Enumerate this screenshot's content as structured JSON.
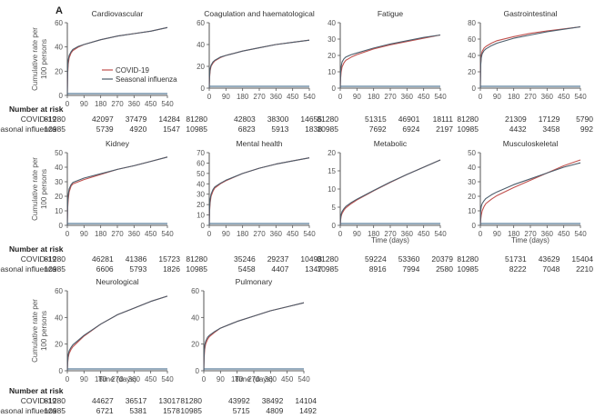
{
  "figure": {
    "panel_letter": "A",
    "ylabel_line1": "Cumulative rate per",
    "ylabel_line2": "100 persons",
    "xlabel": "Time (days)",
    "number_at_risk_label": "Number at risk",
    "risk_row_labels": [
      "COVID-19",
      "Seasonal influenza"
    ],
    "colors": {
      "covid": "#c0504d",
      "influenza": "#4b5d6b",
      "baseline": "#5b7d9a",
      "axis": "#555555",
      "text": "#333333"
    }
  },
  "chart_data": [
    {
      "type": "line",
      "title": "Cardiovascular",
      "xlabel": "",
      "ylabel": "Cumulative rate per 100 persons",
      "xticks": [
        0,
        90,
        180,
        270,
        360,
        450,
        540
      ],
      "ylim": [
        0,
        60
      ],
      "yticks": [
        0,
        20,
        40,
        60
      ],
      "x": [
        0,
        2,
        5,
        10,
        20,
        30,
        60,
        90,
        180,
        270,
        360,
        450,
        540
      ],
      "series": [
        {
          "name": "COVID-19",
          "values": [
            0,
            18,
            26,
            31,
            35,
            37,
            40,
            42,
            46,
            49,
            51,
            53,
            56
          ]
        },
        {
          "name": "Seasonal influenza",
          "values": [
            0,
            22,
            29,
            33,
            36,
            38,
            40.5,
            42,
            46,
            49,
            51,
            53,
            56
          ]
        }
      ],
      "legend": {
        "entries": [
          "COVID-19",
          "Seasonal influenza"
        ],
        "placement": "bottom-right"
      },
      "risk": {
        "covid": [
          81280,
          42097,
          37479,
          14284
        ],
        "influenza": [
          10985,
          5739,
          4920,
          1547
        ]
      },
      "show_time_label": false,
      "show_risk_header": true
    },
    {
      "type": "line",
      "title": "Coagulation and haematological",
      "xticks": [
        0,
        90,
        180,
        270,
        360,
        450,
        540
      ],
      "ylim": [
        0,
        60
      ],
      "yticks": [
        0,
        20,
        40,
        60
      ],
      "x": [
        0,
        2,
        5,
        10,
        20,
        30,
        60,
        90,
        180,
        270,
        360,
        450,
        540
      ],
      "series": [
        {
          "name": "COVID-19",
          "values": [
            0,
            10,
            16,
            20,
            23,
            25,
            28,
            30,
            34,
            37,
            40,
            42,
            44
          ]
        },
        {
          "name": "Seasonal influenza",
          "values": [
            0,
            12,
            18,
            21,
            24,
            25.5,
            28.5,
            30,
            34,
            37,
            40,
            42,
            44
          ]
        }
      ],
      "risk": {
        "covid": [
          81280,
          42803,
          38300,
          14655
        ],
        "influenza": [
          10985,
          6823,
          5913,
          1838
        ]
      },
      "show_time_label": false,
      "show_risk_header": false
    },
    {
      "type": "line",
      "title": "Fatigue",
      "xticks": [
        0,
        90,
        180,
        270,
        360,
        450,
        540
      ],
      "ylim": [
        0,
        40
      ],
      "yticks": [
        0,
        10,
        20,
        30,
        40
      ],
      "x": [
        0,
        2,
        5,
        10,
        20,
        30,
        60,
        90,
        180,
        270,
        360,
        450,
        540
      ],
      "series": [
        {
          "name": "COVID-19",
          "values": [
            0,
            6,
            10,
            13,
            15.5,
            17,
            19,
            20.5,
            24,
            26.5,
            28.5,
            30.5,
            32.5
          ]
        },
        {
          "name": "Seasonal influenza",
          "values": [
            0,
            9,
            13,
            16,
            18,
            19,
            20.5,
            21.5,
            24.5,
            27,
            29,
            31,
            32.5
          ]
        }
      ],
      "risk": {
        "covid": [
          81280,
          51315,
          46901,
          18111
        ],
        "influenza": [
          10985,
          7692,
          6924,
          2197
        ]
      },
      "show_time_label": false,
      "show_risk_header": false
    },
    {
      "type": "line",
      "title": "Gastrointestinal",
      "xticks": [
        0,
        90,
        180,
        270,
        360,
        450,
        540
      ],
      "ylim": [
        0,
        80
      ],
      "yticks": [
        0,
        20,
        40,
        60,
        80
      ],
      "x": [
        0,
        2,
        5,
        10,
        20,
        30,
        60,
        90,
        180,
        270,
        360,
        450,
        540
      ],
      "series": [
        {
          "name": "COVID-19",
          "values": [
            0,
            30,
            40,
            45,
            49,
            51,
            55,
            58,
            63,
            67,
            70,
            72.5,
            75
          ]
        },
        {
          "name": "Seasonal influenza",
          "values": [
            0,
            28,
            37,
            42,
            46,
            48,
            52,
            55,
            61,
            65,
            69,
            72,
            75
          ]
        }
      ],
      "risk": {
        "covid": [
          81280,
          21309,
          17129,
          5790
        ],
        "influenza": [
          10985,
          4432,
          3458,
          992
        ]
      },
      "show_time_label": false,
      "show_risk_header": false
    },
    {
      "type": "line",
      "title": "Kidney",
      "xticks": [
        0,
        90,
        180,
        270,
        360,
        450,
        540
      ],
      "ylim": [
        0,
        50
      ],
      "yticks": [
        0,
        10,
        20,
        30,
        40,
        50
      ],
      "x": [
        0,
        2,
        5,
        10,
        20,
        30,
        60,
        90,
        180,
        270,
        360,
        450,
        540
      ],
      "series": [
        {
          "name": "COVID-19",
          "values": [
            0,
            12,
            18,
            23,
            27,
            28.5,
            30,
            31.5,
            35,
            38.5,
            41,
            44,
            47
          ]
        },
        {
          "name": "Seasonal influenza",
          "values": [
            0,
            15,
            21,
            25,
            28,
            29.5,
            31,
            32.5,
            35.5,
            38.5,
            41,
            44,
            47
          ]
        }
      ],
      "risk": {
        "covid": [
          81280,
          46281,
          41386,
          15723
        ],
        "influenza": [
          10985,
          6606,
          5793,
          1826
        ]
      },
      "show_time_label": false,
      "show_risk_header": true
    },
    {
      "type": "line",
      "title": "Mental health",
      "xticks": [
        0,
        90,
        180,
        270,
        360,
        450,
        540
      ],
      "ylim": [
        0,
        70
      ],
      "yticks": [
        0,
        10,
        20,
        30,
        40,
        50,
        60,
        70
      ],
      "x": [
        0,
        2,
        5,
        10,
        20,
        30,
        60,
        90,
        180,
        270,
        360,
        450,
        540
      ],
      "series": [
        {
          "name": "COVID-19",
          "values": [
            0,
            14,
            22,
            28,
            33,
            36,
            40,
            43,
            50,
            55,
            59,
            62,
            65
          ]
        },
        {
          "name": "Seasonal influenza",
          "values": [
            0,
            17,
            25,
            30,
            34.5,
            37,
            40.5,
            43.5,
            50,
            55,
            59,
            62,
            65
          ]
        }
      ],
      "risk": {
        "covid": [
          81280,
          35246,
          29237,
          10493
        ],
        "influenza": [
          10985,
          5458,
          4407,
          1347
        ]
      },
      "show_time_label": false,
      "show_risk_header": false
    },
    {
      "type": "line",
      "title": "Metabolic",
      "xticks": [
        0,
        90,
        180,
        270,
        360,
        450,
        540
      ],
      "ylim": [
        0,
        20
      ],
      "yticks": [
        0,
        5,
        10,
        15,
        20
      ],
      "x": [
        0,
        2,
        5,
        10,
        20,
        30,
        60,
        90,
        180,
        270,
        360,
        450,
        540
      ],
      "series": [
        {
          "name": "COVID-19",
          "values": [
            0,
            1.5,
            2.5,
            3.3,
            4.2,
            4.8,
            6,
            7,
            9.5,
            11.8,
            14,
            16,
            18
          ]
        },
        {
          "name": "Seasonal influenza",
          "values": [
            0,
            2,
            3,
            3.8,
            4.6,
            5.2,
            6.3,
            7.2,
            9.6,
            11.9,
            14,
            16,
            18
          ]
        }
      ],
      "risk": {
        "covid": [
          81280,
          59224,
          53360,
          20379
        ],
        "influenza": [
          10985,
          8916,
          7994,
          2580
        ]
      },
      "show_time_label": true,
      "show_risk_header": false
    },
    {
      "type": "line",
      "title": "Musculoskeletal",
      "xticks": [
        0,
        90,
        180,
        270,
        360,
        450,
        540
      ],
      "ylim": [
        0,
        50
      ],
      "yticks": [
        0,
        10,
        20,
        30,
        40,
        50
      ],
      "x": [
        0,
        2,
        5,
        10,
        20,
        30,
        60,
        90,
        180,
        270,
        360,
        450,
        540
      ],
      "series": [
        {
          "name": "COVID-19",
          "values": [
            0,
            4,
            7,
            10,
            13,
            15,
            18,
            20.5,
            26,
            31,
            36,
            41,
            45
          ]
        },
        {
          "name": "Seasonal influenza",
          "values": [
            0,
            10,
            13,
            15,
            17,
            18.5,
            21,
            23,
            28,
            32,
            36,
            40,
            43
          ]
        }
      ],
      "risk": {
        "covid": [
          81280,
          51731,
          43629,
          15404
        ],
        "influenza": [
          10985,
          8222,
          7048,
          2210
        ]
      },
      "show_time_label": true,
      "show_risk_header": false
    },
    {
      "type": "line",
      "title": "Neurological",
      "xticks": [
        0,
        90,
        180,
        270,
        360,
        450,
        540
      ],
      "ylim": [
        0,
        60
      ],
      "yticks": [
        0,
        20,
        40,
        60
      ],
      "x": [
        0,
        2,
        5,
        10,
        20,
        30,
        60,
        90,
        180,
        270,
        360,
        450,
        540
      ],
      "series": [
        {
          "name": "COVID-19",
          "values": [
            0,
            6,
            10,
            13,
            16,
            18,
            22,
            26,
            35,
            42,
            47,
            52,
            56
          ]
        },
        {
          "name": "Seasonal influenza",
          "values": [
            0,
            8,
            12,
            15,
            17.5,
            19.5,
            23,
            26.5,
            35,
            42,
            47,
            52,
            56
          ]
        }
      ],
      "risk": {
        "covid": [
          81280,
          44627,
          36517,
          13017
        ],
        "influenza": [
          10985,
          6721,
          5381,
          1578
        ]
      },
      "show_time_label": true,
      "show_risk_header": true
    },
    {
      "type": "line",
      "title": "Pulmonary",
      "xticks": [
        0,
        90,
        180,
        270,
        360,
        450,
        540
      ],
      "ylim": [
        0,
        60
      ],
      "yticks": [
        0,
        20,
        40,
        60
      ],
      "x": [
        0,
        2,
        5,
        10,
        20,
        30,
        60,
        90,
        180,
        270,
        360,
        450,
        540
      ],
      "series": [
        {
          "name": "COVID-19",
          "values": [
            0,
            10,
            16,
            20,
            23.5,
            25.5,
            29,
            32,
            37,
            41,
            45,
            48,
            51
          ]
        },
        {
          "name": "Seasonal influenza",
          "values": [
            0,
            13,
            19,
            22,
            25,
            26.5,
            29.5,
            32,
            37,
            41,
            45,
            48,
            51
          ]
        }
      ],
      "risk": {
        "covid": [
          81280,
          43992,
          38492,
          14104
        ],
        "influenza": [
          10985,
          5715,
          4809,
          1492
        ]
      },
      "show_time_label": true,
      "show_risk_header": false
    }
  ]
}
